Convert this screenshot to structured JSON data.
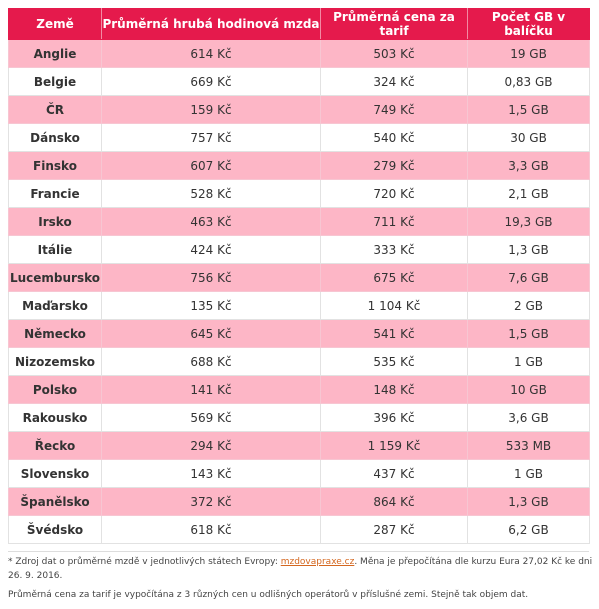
{
  "table": {
    "headers": [
      "Země",
      "Průměrná hrubá hodinová mzda",
      "Průměrná cena za tarif",
      "Počet GB v balíčku"
    ],
    "rows": [
      {
        "country": "Anglie",
        "wage": "614 Kč",
        "price": "503 Kč",
        "gb": "19 GB"
      },
      {
        "country": "Belgie",
        "wage": "669 Kč",
        "price": "324 Kč",
        "gb": "0,83 GB"
      },
      {
        "country": "ČR",
        "wage": "159 Kč",
        "price": "749 Kč",
        "gb": "1,5 GB"
      },
      {
        "country": "Dánsko",
        "wage": "757 Kč",
        "price": "540 Kč",
        "gb": "30 GB"
      },
      {
        "country": "Finsko",
        "wage": "607 Kč",
        "price": "279 Kč",
        "gb": "3,3 GB"
      },
      {
        "country": "Francie",
        "wage": "528 Kč",
        "price": "720 Kč",
        "gb": "2,1 GB"
      },
      {
        "country": "Irsko",
        "wage": "463 Kč",
        "price": "711 Kč",
        "gb": "19,3 GB"
      },
      {
        "country": "Itálie",
        "wage": "424 Kč",
        "price": "333 Kč",
        "gb": "1,3 GB"
      },
      {
        "country": "Lucembursko",
        "wage": "756 Kč",
        "price": "675 Kč",
        "gb": "7,6 GB"
      },
      {
        "country": "Maďarsko",
        "wage": "135 Kč",
        "price": "1 104 Kč",
        "gb": "2 GB"
      },
      {
        "country": "Německo",
        "wage": "645 Kč",
        "price": "541 Kč",
        "gb": "1,5 GB"
      },
      {
        "country": "Nizozemsko",
        "wage": "688 Kč",
        "price": "535 Kč",
        "gb": "1 GB"
      },
      {
        "country": "Polsko",
        "wage": "141 Kč",
        "price": "148 Kč",
        "gb": "10 GB"
      },
      {
        "country": "Rakousko",
        "wage": "569 Kč",
        "price": "396 Kč",
        "gb": "3,6 GB"
      },
      {
        "country": "Řecko",
        "wage": "294 Kč",
        "price": "1 159 Kč",
        "gb": "533 MB"
      },
      {
        "country": "Slovensko",
        "wage": "143 Kč",
        "price": "437 Kč",
        "gb": "1 GB"
      },
      {
        "country": "Španělsko",
        "wage": "372 Kč",
        "price": "864 Kč",
        "gb": "1,3 GB"
      },
      {
        "country": "Švédsko",
        "wage": "618 Kč",
        "price": "287 Kč",
        "gb": "6,2 GB"
      }
    ]
  },
  "notes": {
    "line1_before": "* Zdroj dat o průměrné mzdě v jednotlivých státech Evropy: ",
    "line1_link": "mzdovapraxe.cz",
    "line1_after": ". Měna je přepočítána dle kurzu Eura 27,02 Kč ke dni 26. 9. 2016.",
    "line2": "Průměrná cena za tarif je vypočítána z 3 různých cen u odlišných operátorů v příslušné zemi. Stejně tak objem dat."
  },
  "colors": {
    "header_bg": "#e51a4c",
    "stripe_bg": "#fdb6c6",
    "link": "#d4671f"
  }
}
